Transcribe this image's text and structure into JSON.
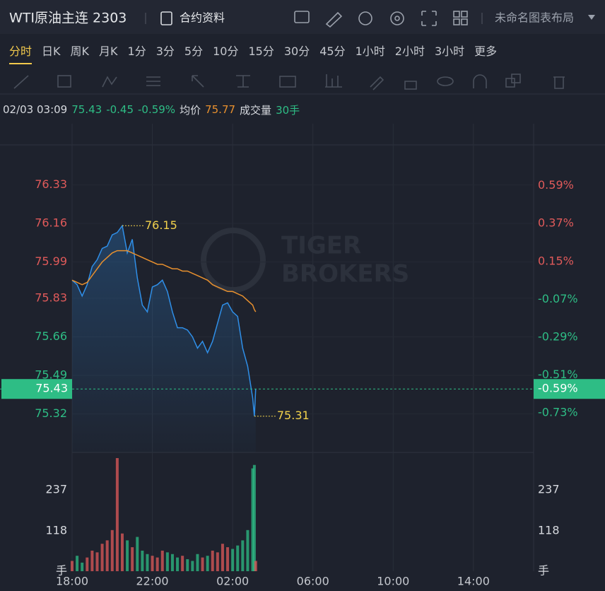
{
  "header": {
    "title": "WTI原油主连 2303",
    "info": "合约资料",
    "layout": "未命名图表布局"
  },
  "tabs": [
    "分时",
    "日K",
    "周K",
    "月K",
    "1分",
    "3分",
    "5分",
    "10分",
    "15分",
    "30分",
    "45分",
    "1小时",
    "2小时",
    "3小时",
    "更多"
  ],
  "quote": {
    "time": "02/03 03:09",
    "price": "75.43",
    "change": "-0.45",
    "pct": "-0.59%",
    "avg_label": "均价",
    "avg": "75.77",
    "vol_label": "成交量",
    "vol": "30手"
  },
  "chart_data": {
    "type": "line",
    "watermark": [
      "TIGER",
      "BROKERS"
    ],
    "x": [
      "18:00",
      "18:15",
      "18:30",
      "18:45",
      "19:00",
      "19:15",
      "19:30",
      "19:45",
      "20:00",
      "20:15",
      "20:30",
      "20:45",
      "21:00",
      "21:15",
      "21:30",
      "21:45",
      "22:00",
      "22:15",
      "22:30",
      "22:45",
      "23:00",
      "23:15",
      "23:30",
      "23:45",
      "00:00",
      "00:15",
      "00:30",
      "00:45",
      "01:00",
      "01:15",
      "01:30",
      "01:45",
      "02:00",
      "02:15",
      "02:30",
      "02:45",
      "03:00",
      "03:05",
      "03:09"
    ],
    "xlim": [
      "18:00",
      "17:00"
    ],
    "xticks": [
      "18:00",
      "22:00",
      "02:00",
      "06:00",
      "10:00",
      "14:00"
    ],
    "series": [
      {
        "color": "#2f8fe8",
        "values": [
          75.91,
          75.89,
          75.84,
          75.89,
          75.97,
          76.0,
          76.05,
          76.06,
          76.11,
          76.12,
          76.15,
          76.03,
          76.09,
          75.92,
          75.8,
          75.77,
          75.88,
          75.89,
          75.91,
          75.86,
          75.77,
          75.7,
          75.7,
          75.69,
          75.66,
          75.61,
          75.64,
          75.59,
          75.64,
          75.72,
          75.8,
          75.81,
          75.77,
          75.75,
          75.61,
          75.53,
          75.39,
          75.31,
          75.43
        ]
      },
      {
        "color": "#e8902e",
        "values": [
          75.91,
          75.9,
          75.89,
          75.9,
          75.93,
          75.96,
          75.99,
          76.01,
          76.03,
          76.04,
          76.04,
          76.04,
          76.03,
          76.02,
          76.01,
          76.0,
          75.99,
          75.98,
          75.98,
          75.97,
          75.96,
          75.96,
          75.95,
          75.95,
          75.94,
          75.93,
          75.92,
          75.91,
          75.89,
          75.88,
          75.87,
          75.86,
          75.86,
          75.85,
          75.84,
          75.82,
          75.8,
          75.78,
          75.77
        ]
      }
    ],
    "annotations": [
      {
        "x": "20:30",
        "value": 76.15
      },
      {
        "x": "03:05",
        "value": 75.31
      }
    ],
    "ylim": [
      75.15,
      76.6
    ],
    "yticks": [
      75.32,
      75.49,
      75.66,
      75.83,
      75.99,
      76.16,
      76.33
    ],
    "y2lim": [
      -0.96,
      0.95
    ],
    "y2ticks": [
      {
        "value": -0.73,
        "label": "-0.73%"
      },
      {
        "value": -0.51,
        "label": "-0.51%"
      },
      {
        "value": -0.29,
        "label": "-0.29%"
      },
      {
        "value": -0.07,
        "label": "-0.07%"
      },
      {
        "value": 0.15,
        "label": "0.15%"
      },
      {
        "value": 0.37,
        "label": "0.37%"
      },
      {
        "value": 0.59,
        "label": "0.59%"
      }
    ],
    "last_price": 75.43,
    "last_pct": {
      "value": -0.59,
      "label": "-0.59%"
    },
    "up_color": "#e05a5a",
    "down_color": "#2ebd85",
    "volume": {
      "values": [
        30,
        45,
        25,
        40,
        60,
        55,
        80,
        90,
        120,
        330,
        110,
        90,
        70,
        100,
        60,
        50,
        45,
        40,
        60,
        55,
        50,
        40,
        45,
        35,
        30,
        50,
        40,
        45,
        60,
        55,
        80,
        70,
        65,
        75,
        90,
        120,
        300,
        310,
        30
      ],
      "ylim": [
        0,
        330
      ],
      "yticks": [
        {
          "value": 0,
          "label": "手"
        },
        118,
        237
      ]
    }
  }
}
